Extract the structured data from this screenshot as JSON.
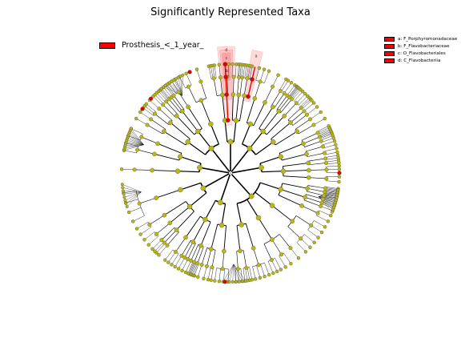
{
  "title": "Significantly Represented Taxa",
  "legend": {
    "class_label": "Prosthesis_<_1_year_",
    "class_color": "#ff0000"
  },
  "clades": [
    {
      "key": "a",
      "label": "a: F_Porphyromonadaceae"
    },
    {
      "key": "b",
      "label": "b: F_Flavobacteriaceae"
    },
    {
      "key": "c",
      "label": "c: O_Flavobacteriales"
    },
    {
      "key": "d",
      "label": "d: C_Flavobacteriia"
    }
  ],
  "colors": {
    "node": "#b8b80e",
    "significant": "#e00000",
    "highlight": "#ff5050",
    "edge": "#000000",
    "background": "#ffffff"
  }
}
